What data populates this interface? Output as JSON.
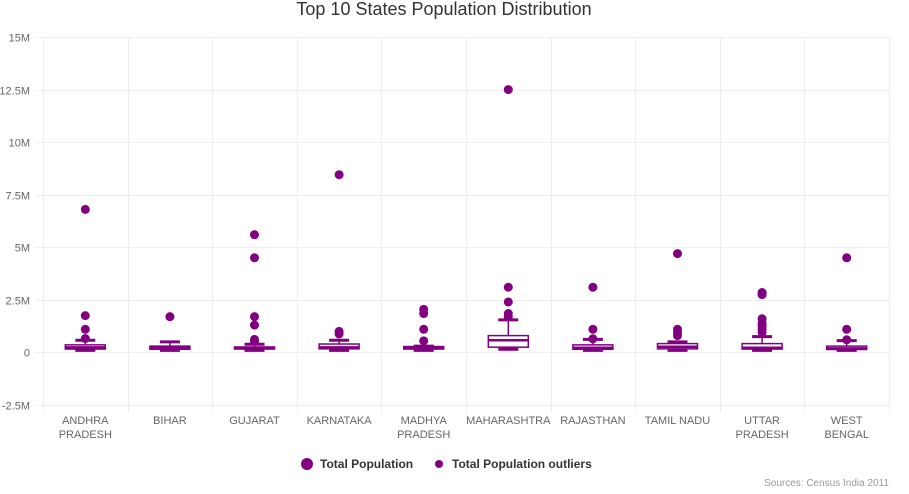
{
  "chart_data": {
    "type": "boxplot",
    "title": "Top 10 States Population Distribution",
    "xlabel": "",
    "ylabel": "",
    "ylim": [
      -2500000,
      15000000
    ],
    "yticks": [
      {
        "value": 15000000,
        "label": "15M"
      },
      {
        "value": 12500000,
        "label": "12.5M"
      },
      {
        "value": 10000000,
        "label": "10M"
      },
      {
        "value": 7500000,
        "label": "7.5M"
      },
      {
        "value": 5000000,
        "label": "5M"
      },
      {
        "value": 2500000,
        "label": "2.5M"
      },
      {
        "value": 0,
        "label": "0"
      },
      {
        "value": -2500000,
        "label": "-2.5M"
      }
    ],
    "grid": true,
    "categories": [
      [
        "ANDHRA",
        "PRADESH"
      ],
      [
        "BIHAR"
      ],
      [
        "GUJARAT"
      ],
      [
        "KARNATAKA"
      ],
      [
        "MADHYA",
        "PRADESH"
      ],
      [
        "MAHARASHTRA"
      ],
      [
        "RAJASTHAN"
      ],
      [
        "TAMIL NADU"
      ],
      [
        "UTTAR",
        "PRADESH"
      ],
      [
        "WEST",
        "BENGAL"
      ]
    ],
    "series": [
      {
        "name": "Total Population",
        "boxes": [
          {
            "min": 100000,
            "q1": 160000,
            "median": 240000,
            "q3": 360000,
            "max": 580000
          },
          {
            "min": 100000,
            "q1": 150000,
            "median": 220000,
            "q3": 300000,
            "max": 500000
          },
          {
            "min": 100000,
            "q1": 160000,
            "median": 200000,
            "q3": 260000,
            "max": 390000
          },
          {
            "min": 100000,
            "q1": 170000,
            "median": 240000,
            "q3": 400000,
            "max": 580000
          },
          {
            "min": 100000,
            "q1": 160000,
            "median": 210000,
            "q3": 280000,
            "max": 300000
          },
          {
            "min": 150000,
            "q1": 250000,
            "median": 580000,
            "q3": 800000,
            "max": 1550000
          },
          {
            "min": 100000,
            "q1": 150000,
            "median": 220000,
            "q3": 360000,
            "max": 620000
          },
          {
            "min": 100000,
            "q1": 170000,
            "median": 270000,
            "q3": 420000,
            "max": 500000
          },
          {
            "min": 100000,
            "q1": 160000,
            "median": 220000,
            "q3": 420000,
            "max": 750000
          },
          {
            "min": 100000,
            "q1": 140000,
            "median": 190000,
            "q3": 300000,
            "max": 560000
          }
        ]
      },
      {
        "name": "Total Population outliers",
        "points": [
          [
            6800000,
            1750000,
            1100000,
            660000
          ],
          [
            1700000
          ],
          [
            5600000,
            4500000,
            1700000,
            1300000,
            620000,
            520000
          ],
          [
            8450000,
            1000000,
            880000
          ],
          [
            2050000,
            1850000,
            1100000,
            550000
          ],
          [
            12500000,
            3100000,
            2400000,
            1850000,
            1700000
          ],
          [
            3100000,
            1100000,
            650000
          ],
          [
            4700000,
            1100000,
            950000,
            800000
          ],
          [
            2850000,
            2750000,
            1600000,
            1400000,
            1250000,
            1100000,
            950000
          ],
          [
            4500000,
            1100000,
            600000
          ]
        ]
      }
    ],
    "legend": {
      "position": "bottom-center",
      "entries": [
        {
          "label": "Total Population",
          "color": "#800080"
        },
        {
          "label": "Total Population outliers",
          "color": "#800080"
        }
      ]
    },
    "annotation": "Sources: Census India 2011",
    "colors": {
      "primary": "#800080",
      "grid": "#eeeeee",
      "axis_text": "#666666",
      "title": "#333333"
    }
  }
}
